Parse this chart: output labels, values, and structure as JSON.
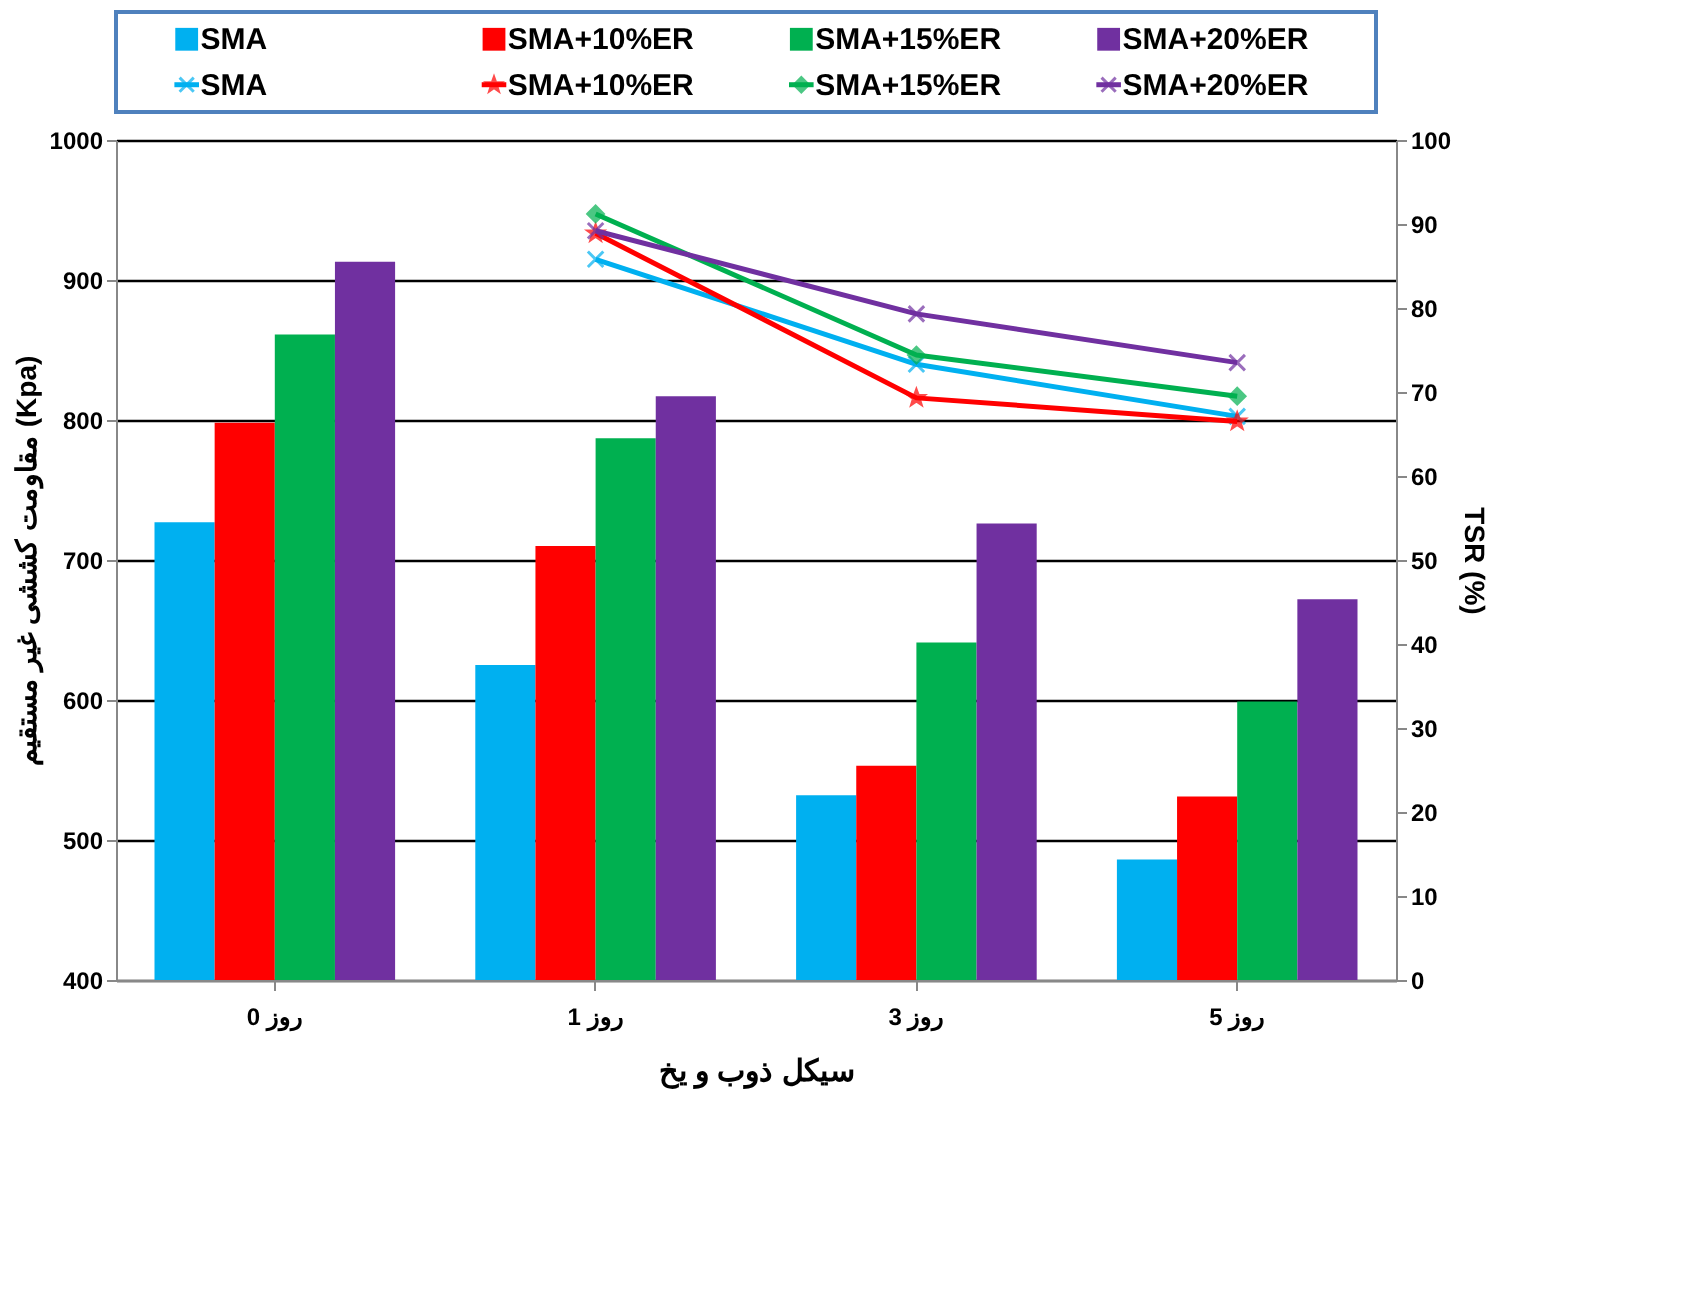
{
  "chart_data": {
    "type": "bar",
    "categories": [
      "0 روز",
      "1 روز",
      "3 روز",
      "5 روز"
    ],
    "xlabel": "سیکل ذوب و یخ",
    "ylabel": "مقاومت کششی غیر مستقیم (Kpa)",
    "y2label": "TSR (%)",
    "ylim": [
      400,
      1000
    ],
    "yticks": [
      400,
      500,
      600,
      700,
      800,
      900,
      1000
    ],
    "y2lim": [
      0,
      100
    ],
    "y2ticks": [
      0,
      10,
      20,
      30,
      40,
      50,
      60,
      70,
      80,
      90,
      100
    ],
    "grid": "y",
    "legend": "top",
    "series": [
      {
        "name": "SMA",
        "color": "#00b0f0",
        "values": [
          727,
          625,
          532,
          486
        ]
      },
      {
        "name": "SMA+10%ER",
        "color": "#ff0000",
        "values": [
          798,
          710,
          553,
          531
        ]
      },
      {
        "name": "SMA+15%ER",
        "color": "#00b050",
        "values": [
          861,
          787,
          641,
          599
        ]
      },
      {
        "name": "SMA+20%ER",
        "color": "#7030a0",
        "values": [
          913,
          817,
          726,
          672
        ]
      },
      {
        "name": "SMA",
        "type": "line",
        "axis": "y2",
        "marker": "cross",
        "color": "#00b0f0",
        "values": [
          null,
          85.8,
          73.3,
          67.1
        ]
      },
      {
        "name": "SMA+10%ER",
        "type": "line",
        "axis": "y2",
        "marker": "star",
        "color": "#ff0000",
        "values": [
          null,
          88.9,
          69.3,
          66.5
        ]
      },
      {
        "name": "SMA+15%ER",
        "type": "line",
        "axis": "y2",
        "marker": "diamond",
        "color": "#00b050",
        "values": [
          null,
          91.2,
          74.4,
          69.5
        ]
      },
      {
        "name": "SMA+20%ER",
        "type": "line",
        "axis": "y2",
        "marker": "cross",
        "color": "#7030a0",
        "values": [
          null,
          89.2,
          79.3,
          73.5
        ]
      }
    ]
  }
}
